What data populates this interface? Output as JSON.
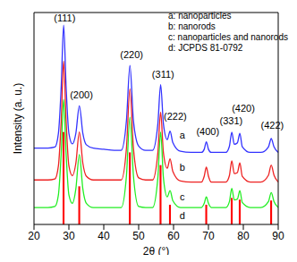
{
  "chart_data": {
    "type": "line",
    "xlabel": "2θ (°)",
    "ylabel": "Intensity (a. u.)",
    "x": [
      20,
      22,
      24,
      26,
      27,
      27.8,
      28.5,
      29.2,
      30,
      31,
      32,
      33,
      34,
      35,
      37,
      40,
      43,
      45,
      46.5,
      47.5,
      48.5,
      50,
      52,
      54,
      55.5,
      56.3,
      57.1,
      58.2,
      59,
      59.8,
      62,
      65,
      68,
      68.8,
      69.4,
      70,
      70.8,
      73,
      75,
      76,
      76.7,
      77.4,
      78.3,
      79,
      79.7,
      82,
      85,
      87.2,
      88,
      88.8,
      90
    ],
    "series": [
      {
        "name": "a: nanoparticles",
        "type": "line",
        "color": "#3333ff",
        "values": [
          36,
          36,
          36,
          36.5,
          43,
          65,
          94,
          65,
          43,
          38,
          43,
          56,
          43,
          37.6,
          36,
          35.5,
          35,
          35,
          49,
          75,
          49,
          37,
          35,
          35,
          47.4,
          66,
          47.4,
          40,
          44,
          38.6,
          34.5,
          34,
          34,
          35.5,
          39,
          35.5,
          34,
          34,
          34,
          36.8,
          43.5,
          37.8,
          38.5,
          43,
          36.7,
          34,
          34,
          36.6,
          40.5,
          36.6,
          34
        ]
      },
      {
        "name": "b: nanorods",
        "type": "line",
        "color": "#ee2222",
        "values": [
          21,
          21,
          21,
          21.5,
          27.7,
          49,
          77,
          49,
          27.7,
          23,
          28.9,
          43.6,
          28.9,
          22.8,
          21,
          21,
          21,
          21,
          36,
          64,
          36,
          22,
          21,
          21,
          33.8,
          53,
          33.8,
          26.5,
          31,
          25,
          20.5,
          20,
          20,
          22.8,
          27,
          22.8,
          20,
          20,
          20,
          23,
          30,
          24,
          24.5,
          29,
          22.7,
          20,
          20,
          23.2,
          28,
          23.2,
          20
        ]
      },
      {
        "name": "c: nanoparticles and nanorods",
        "type": "line",
        "color": "#22ee22",
        "values": [
          8,
          8,
          8,
          8.5,
          14,
          33.5,
          59,
          33.5,
          14,
          10,
          16.8,
          33,
          16.8,
          10,
          8,
          8,
          8,
          8,
          23,
          50.6,
          23,
          8.5,
          8,
          8,
          22,
          43.6,
          22,
          13,
          16,
          11.2,
          8,
          8,
          8,
          10,
          13,
          10,
          8,
          8,
          8,
          10.7,
          17,
          11.6,
          12,
          16,
          10.4,
          8,
          8,
          10.8,
          15,
          10.8,
          8
        ]
      },
      {
        "name": "d: JCPDS 81-0792",
        "type": "bar",
        "color": "#ff0000",
        "values": [
          null,
          null,
          null,
          null,
          null,
          null,
          43.6,
          null,
          null,
          null,
          null,
          18,
          null,
          null,
          null,
          null,
          null,
          null,
          null,
          34,
          null,
          null,
          null,
          null,
          null,
          28,
          null,
          null,
          9.3,
          null,
          null,
          null,
          null,
          null,
          9.3,
          null,
          null,
          null,
          null,
          null,
          12.5,
          null,
          null,
          11.7,
          null,
          null,
          null,
          null,
          11.3,
          null,
          null
        ]
      }
    ],
    "xlim": [
      20,
      90
    ],
    "xticks": [
      20,
      30,
      40,
      50,
      60,
      70,
      80,
      90
    ],
    "ylim": [
      0,
      100
    ],
    "tick_labels": "x",
    "legend": "upper right",
    "annotations": [
      {
        "text": "(111)",
        "x": 28.8,
        "y": 97.5
      },
      {
        "text": "(200)",
        "x": 33.6,
        "y": 61
      },
      {
        "text": "(220)",
        "x": 48,
        "y": 80
      },
      {
        "text": "(311)",
        "x": 57,
        "y": 71
      },
      {
        "text": "(222)",
        "x": 60.5,
        "y": 51
      },
      {
        "text": "(400)",
        "x": 69.8,
        "y": 44
      },
      {
        "text": "(331)",
        "x": 76.5,
        "y": 49
      },
      {
        "text": "(420)",
        "x": 80,
        "y": 55
      },
      {
        "text": "(422)",
        "x": 88.3,
        "y": 47
      },
      {
        "text": "a",
        "x": 62.5,
        "y": 42
      },
      {
        "text": "b",
        "x": 62.5,
        "y": 27
      },
      {
        "text": "c",
        "x": 62.5,
        "y": 13
      },
      {
        "text": "d",
        "x": 62.5,
        "y": 4
      }
    ]
  }
}
